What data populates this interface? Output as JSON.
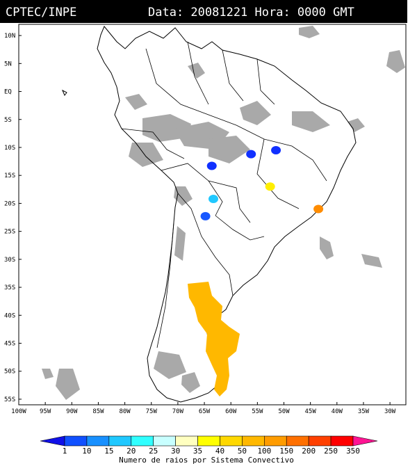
{
  "header": {
    "source": "CPTEC/INPE",
    "datetime": "Data: 20081221 Hora: 0000 GMT"
  },
  "map": {
    "lat_ticks": [
      "10N",
      "5N",
      "EQ",
      "5S",
      "10S",
      "15S",
      "20S",
      "25S",
      "30S",
      "35S",
      "40S",
      "45S",
      "50S",
      "55S"
    ],
    "lon_ticks": [
      "100W",
      "95W",
      "90W",
      "85W",
      "80W",
      "75W",
      "70W",
      "65W",
      "60W",
      "55W",
      "50W",
      "45W",
      "40W",
      "35W",
      "30W"
    ],
    "lat_range": [
      -56,
      12
    ],
    "lon_range": [
      -100,
      -27
    ],
    "cloud_color": "#a9a9a9",
    "cells": [
      {
        "name": "cell-central-west-1",
        "lon": -63.6,
        "lat": -13.3,
        "class_color": "#1030ff"
      },
      {
        "name": "cell-central-brazil-1",
        "lon": -56.2,
        "lat": -11.2,
        "class_color": "#1030ff"
      },
      {
        "name": "cell-central-brazil-2",
        "lon": -51.5,
        "lat": -10.5,
        "class_color": "#1030ff"
      },
      {
        "name": "cell-bolivia-cyan",
        "lon": -63.3,
        "lat": -19.2,
        "class_color": "#20c8ff"
      },
      {
        "name": "cell-paraguay-blue",
        "lon": -64.8,
        "lat": -22.3,
        "class_color": "#1858ff"
      },
      {
        "name": "cell-goias-yellow",
        "lon": -52.6,
        "lat": -17.0,
        "class_color": "#ffee00"
      },
      {
        "name": "cell-southeast-orange",
        "lon": -43.5,
        "lat": -21.0,
        "class_color": "#ff8c00"
      }
    ],
    "large_system": {
      "name": "patagonia-convective-system",
      "class_color": "#ffb800"
    }
  },
  "colorbar": {
    "ticks": [
      "1",
      "10",
      "15",
      "20",
      "25",
      "30",
      "35",
      "40",
      "50",
      "100",
      "150",
      "200",
      "250",
      "350"
    ],
    "colors": [
      "#1010e8",
      "#1050ff",
      "#1890ff",
      "#20c8ff",
      "#30ffff",
      "#c8ffff",
      "#ffffc0",
      "#ffff00",
      "#ffd800",
      "#ffb800",
      "#ff9c00",
      "#ff7000",
      "#ff4000",
      "#ff0000",
      "#ff1493"
    ],
    "title": "Numero de raios por Sistema Convectivo"
  }
}
